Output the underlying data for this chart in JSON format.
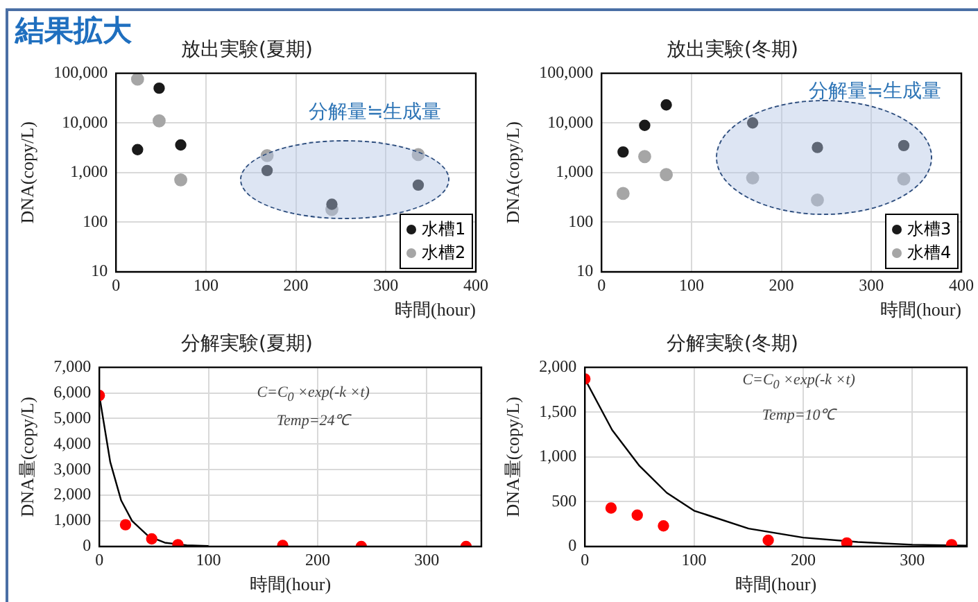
{
  "chart_data": [
    {
      "type": "other",
      "title": "結果拡大"
    },
    {
      "type": "scatter",
      "title": "放出実験(夏期)",
      "xlabel": "時間(hour)",
      "ylabel": "DNA(copy/L)",
      "log": "y",
      "grid": true,
      "legend": "bottom right",
      "marker": "circle",
      "xlim": [
        0,
        400
      ],
      "xticks": [
        0,
        100,
        200,
        300,
        400
      ],
      "ylim": [
        10,
        100000
      ],
      "yticks": [
        10,
        100,
        {
          "value": 1000,
          "label": "1,000"
        },
        {
          "value": 10000,
          "label": "10,000"
        },
        {
          "value": 100000,
          "label": "100,000"
        }
      ],
      "x": [
        24,
        48,
        72,
        168,
        240,
        336
      ],
      "series": [
        {
          "name": "水槽1",
          "color": "#1a1a1a",
          "values": [
            2900,
            50000,
            3600,
            1100,
            230,
            560
          ]
        },
        {
          "name": "水槽2",
          "color": "#a6a6a6",
          "values": [
            76000,
            11000,
            710,
            2200,
            180,
            2300
          ]
        }
      ],
      "annotations": [
        "分解量≒生成量"
      ]
    },
    {
      "type": "scatter",
      "title": "放出実験(冬期)",
      "xlabel": "時間(hour)",
      "ylabel": "DNA(copy/L)",
      "log": "y",
      "grid": true,
      "legend": "bottom right",
      "marker": "circle",
      "xlim": [
        0,
        400
      ],
      "xticks": [
        0,
        100,
        200,
        300,
        400
      ],
      "ylim": [
        10,
        100000
      ],
      "yticks": [
        10,
        100,
        {
          "value": 1000,
          "label": "1,000"
        },
        {
          "value": 10000,
          "label": "10,000"
        },
        {
          "value": 100000,
          "label": "100,000"
        }
      ],
      "x": [
        24,
        48,
        72,
        168,
        240,
        336
      ],
      "series": [
        {
          "name": "水槽3",
          "color": "#1a1a1a",
          "values": [
            2600,
            8900,
            23000,
            10000,
            3200,
            3500
          ]
        },
        {
          "name": "水槽4",
          "color": "#a6a6a6",
          "values": [
            380,
            2100,
            910,
            780,
            280,
            740
          ]
        }
      ],
      "annotations": [
        "分解量≒生成量"
      ]
    },
    {
      "type": "scatter",
      "title": "分解実験(夏期)",
      "xlabel": "時間(hour)",
      "ylabel": "DNA量(copy/L)",
      "grid": true,
      "marker": "circle",
      "xlim": [
        0,
        350
      ],
      "xticks": [
        0,
        100,
        200,
        300
      ],
      "ylim": [
        0,
        7000
      ],
      "yticks": [
        0,
        {
          "value": 1000,
          "label": "1,000"
        },
        {
          "value": 2000,
          "label": "2,000"
        },
        {
          "value": 3000,
          "label": "3,000"
        },
        {
          "value": 4000,
          "label": "4,000"
        },
        {
          "value": 5000,
          "label": "5,000"
        },
        {
          "value": 6000,
          "label": "6,000"
        },
        {
          "value": 7000,
          "label": "7,000"
        }
      ],
      "x": [
        0,
        24,
        48,
        72,
        168,
        240,
        336
      ],
      "series": [
        {
          "color": "#ff0000",
          "values": [
            5900,
            850,
            300,
            70,
            40,
            0,
            0
          ]
        },
        {
          "type": "line",
          "marker": "none",
          "color": "#000000",
          "x": [
            0,
            10,
            20,
            30,
            45,
            60,
            80,
            100
          ],
          "values": [
            5900,
            3300,
            1800,
            1000,
            400,
            150,
            50,
            20
          ]
        }
      ],
      "annotations": [
        "C=C$_{0}$ ×exp(-k ×t)",
        "Temp=24℃"
      ]
    },
    {
      "type": "scatter",
      "title": "分解実験(冬期)",
      "xlabel": "時間(hour)",
      "ylabel": "DNA量(copy/L)",
      "grid": true,
      "marker": "circle",
      "xlim": [
        0,
        350
      ],
      "xticks": [
        0,
        100,
        200,
        300
      ],
      "ylim": [
        0,
        2000
      ],
      "yticks": [
        0,
        500,
        {
          "value": 1000,
          "label": "1,000"
        },
        {
          "value": 1500,
          "label": "1,500"
        },
        {
          "value": 2000,
          "label": "2,000"
        }
      ],
      "x": [
        0,
        24,
        48,
        72,
        168,
        240,
        336
      ],
      "series": [
        {
          "color": "#ff0000",
          "values": [
            1870,
            430,
            350,
            230,
            70,
            40,
            20
          ]
        },
        {
          "type": "line",
          "marker": "none",
          "color": "#000000",
          "x": [
            0,
            25,
            50,
            75,
            100,
            150,
            200,
            250,
            300,
            350
          ],
          "values": [
            1870,
            1300,
            900,
            600,
            400,
            200,
            100,
            50,
            20,
            10
          ]
        }
      ],
      "annotations": [
        "C=C$_{0}$ ×exp(-k ×t)",
        "Temp=10℃"
      ]
    }
  ]
}
